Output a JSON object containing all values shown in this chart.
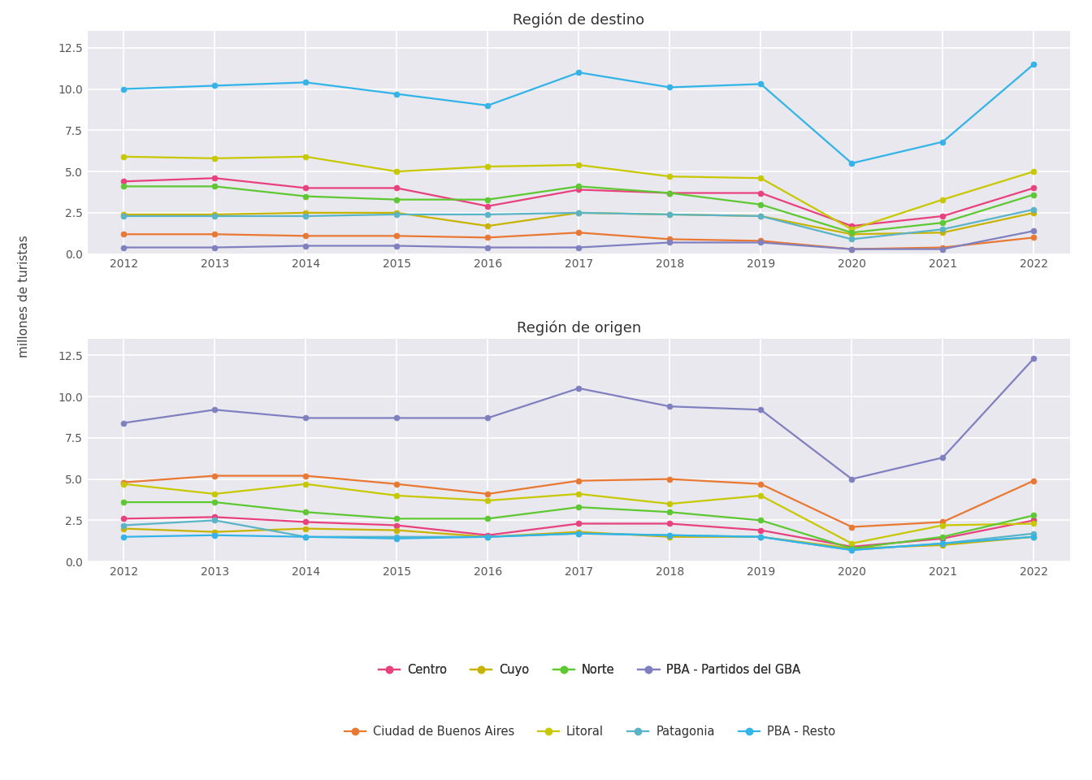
{
  "years": [
    2012,
    2013,
    2014,
    2015,
    2016,
    2017,
    2018,
    2019,
    2020,
    2021,
    2022
  ],
  "title_top": "Región de destino",
  "title_bottom": "Región de origen",
  "ylabel": "millones de turistas",
  "fig_bg": "#ffffff",
  "plot_bg": "#e8e8ee",
  "grid_color": "#ffffff",
  "series": {
    "Centro": {
      "color": "#e8417e",
      "marker": "o",
      "destino": [
        4.4,
        4.6,
        4.0,
        4.0,
        2.9,
        3.9,
        3.7,
        3.7,
        1.7,
        2.3,
        4.0
      ],
      "origen": [
        2.6,
        2.7,
        2.4,
        2.2,
        1.6,
        2.3,
        2.3,
        1.9,
        0.9,
        1.4,
        2.5
      ]
    },
    "Ciudad de Buenos Aires": {
      "color": "#e87832",
      "marker": "o",
      "destino": [
        1.2,
        1.2,
        1.1,
        1.1,
        1.0,
        1.3,
        0.9,
        0.8,
        0.3,
        0.4,
        1.0
      ],
      "origen": [
        4.8,
        5.2,
        5.2,
        4.7,
        4.1,
        4.9,
        5.0,
        4.7,
        2.1,
        2.4,
        4.9
      ]
    },
    "Cuyo": {
      "color": "#c8b400",
      "marker": "o",
      "destino": [
        2.4,
        2.4,
        2.5,
        2.5,
        1.7,
        2.5,
        2.4,
        2.3,
        1.2,
        1.3,
        2.5
      ],
      "origen": [
        2.0,
        1.8,
        2.0,
        1.9,
        1.5,
        1.8,
        1.5,
        1.5,
        0.8,
        1.0,
        1.5
      ]
    },
    "Litoral": {
      "color": "#c8c800",
      "marker": "o",
      "destino": [
        5.9,
        5.8,
        5.9,
        5.0,
        5.3,
        5.4,
        4.7,
        4.6,
        1.5,
        3.3,
        5.0
      ],
      "origen": [
        4.7,
        4.1,
        4.7,
        4.0,
        3.7,
        4.1,
        3.5,
        4.0,
        1.1,
        2.2,
        2.3
      ]
    },
    "Norte": {
      "color": "#5ec832",
      "marker": "o",
      "destino": [
        4.1,
        4.1,
        3.5,
        3.3,
        3.3,
        4.1,
        3.7,
        3.0,
        1.3,
        1.9,
        3.6
      ],
      "origen": [
        3.6,
        3.6,
        3.0,
        2.6,
        2.6,
        3.3,
        3.0,
        2.5,
        0.8,
        1.5,
        2.8
      ]
    },
    "Patagonia": {
      "color": "#5ab4c8",
      "marker": "o",
      "destino": [
        2.3,
        2.3,
        2.3,
        2.4,
        2.4,
        2.5,
        2.4,
        2.3,
        0.9,
        1.5,
        2.7
      ],
      "origen": [
        2.2,
        2.5,
        1.5,
        1.5,
        1.5,
        1.7,
        1.6,
        1.5,
        0.7,
        1.1,
        1.7
      ]
    },
    "PBA - Partidos del GBA": {
      "color": "#8080c0",
      "marker": "o",
      "destino": [
        0.4,
        0.4,
        0.5,
        0.5,
        0.4,
        0.4,
        0.7,
        0.7,
        0.3,
        0.3,
        1.4
      ],
      "origen": [
        8.4,
        9.2,
        8.7,
        8.7,
        8.7,
        10.5,
        9.4,
        9.2,
        5.0,
        6.3,
        12.3
      ]
    },
    "PBA - Resto": {
      "color": "#32b4e8",
      "marker": "o",
      "destino": [
        10.0,
        10.2,
        10.4,
        9.7,
        9.0,
        11.0,
        10.1,
        10.3,
        5.5,
        6.8,
        11.5
      ],
      "origen": [
        1.5,
        1.6,
        1.5,
        1.4,
        1.5,
        1.7,
        1.6,
        1.5,
        0.7,
        1.1,
        1.5
      ]
    }
  },
  "legend_row1": [
    "Centro",
    "Cuyo",
    "Norte",
    "PBA - Partidos del GBA"
  ],
  "legend_row2": [
    "Ciudad de Buenos Aires",
    "Litoral",
    "Patagonia",
    "PBA - Resto"
  ],
  "yticks": [
    0.0,
    2.5,
    5.0,
    7.5,
    10.0,
    12.5
  ],
  "ylim": [
    0,
    13.5
  ],
  "title_fontsize": 13,
  "tick_fontsize": 10,
  "ylabel_fontsize": 11,
  "legend_fontsize": 10.5
}
